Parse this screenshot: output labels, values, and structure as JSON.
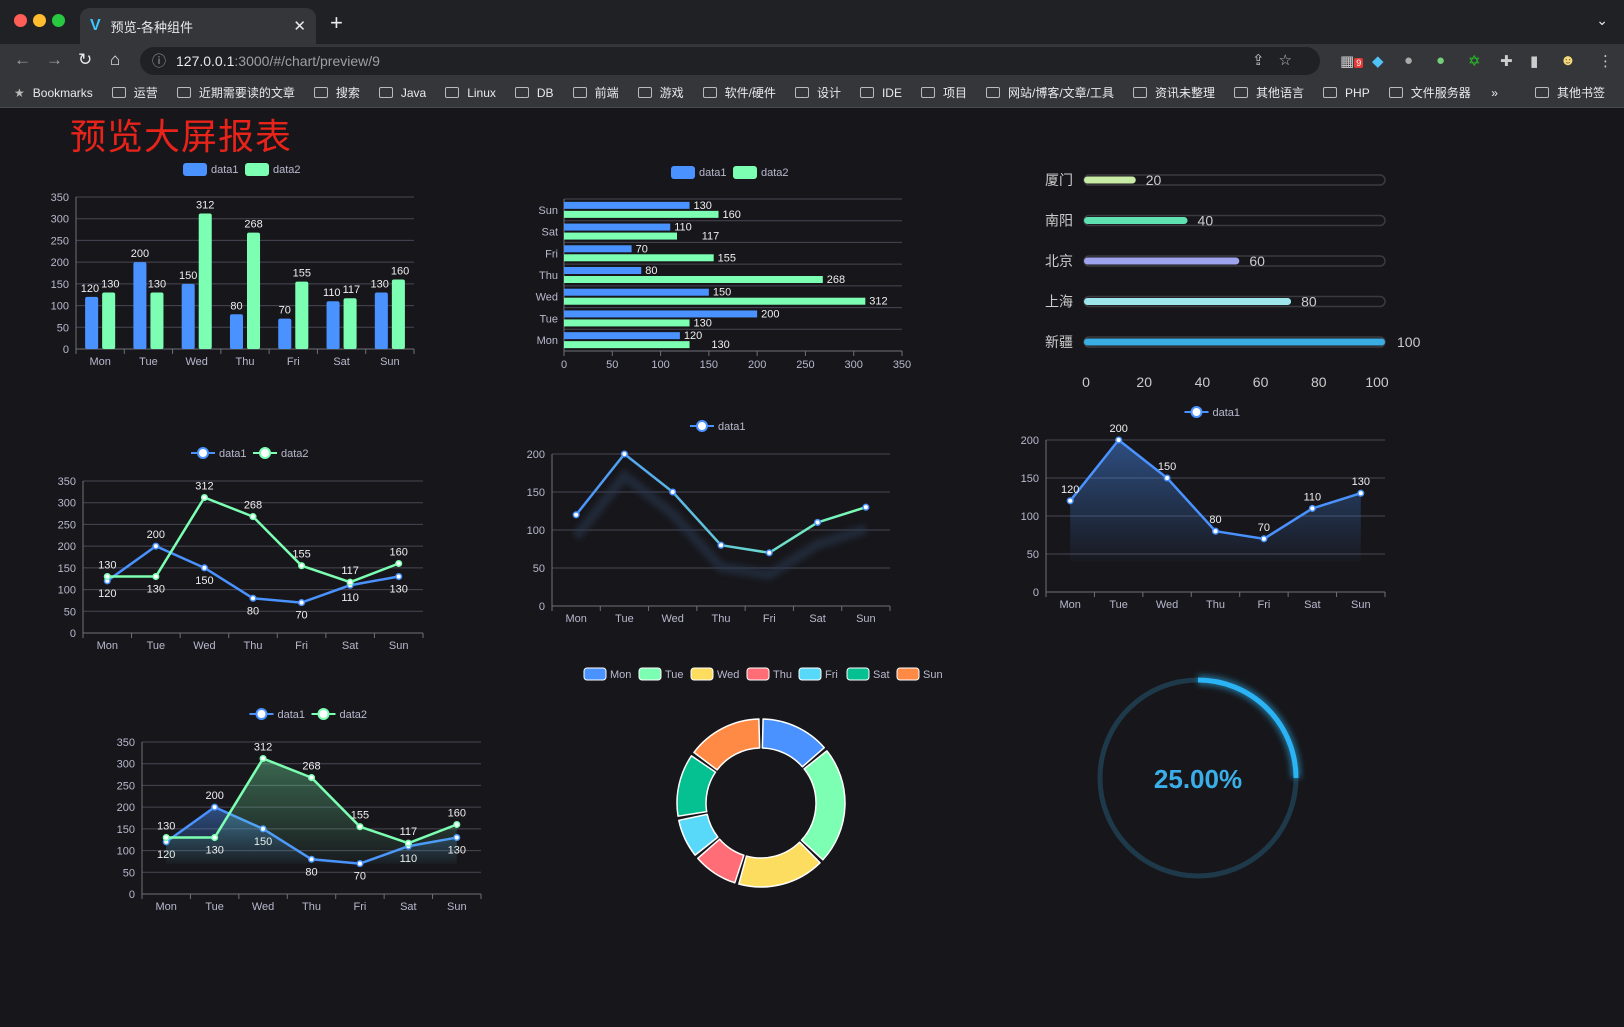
{
  "browser": {
    "tab_title": "预览-各种组件",
    "url_host": "127.0.0.1",
    "url_path": ":3000/#/chart/preview/9",
    "extension_badge": "9",
    "bookmarks": [
      "Bookmarks",
      "运营",
      "近期需要读的文章",
      "搜索",
      "Java",
      "Linux",
      "DB",
      "前端",
      "游戏",
      "软件/硬件",
      "设计",
      "IDE",
      "项目",
      "网站/博客/文章/工具",
      "资讯未整理",
      "其他语言",
      "PHP",
      "文件服务器"
    ],
    "bookmarks_more": "»",
    "other_bookmarks": "其他书签"
  },
  "page": {
    "title": "预览大屏报表",
    "title_color": "#e8231a",
    "background": "#17171b"
  },
  "colors": {
    "blue": "#4992ff",
    "green": "#7cffb2",
    "yellow": "#fddd60",
    "red": "#ff6e76",
    "cyan": "#58d9f9",
    "teal": "#05c091",
    "orange": "#ff8a45",
    "axis": "#6e7079",
    "text": "#b9b8ce",
    "grid": "#484753"
  },
  "chart_data": [
    {
      "id": "bar",
      "type": "bar",
      "categories": [
        "Mon",
        "Tue",
        "Wed",
        "Thu",
        "Fri",
        "Sat",
        "Sun"
      ],
      "ylim": [
        0,
        350
      ],
      "yticks": [
        0,
        50,
        100,
        150,
        200,
        250,
        300,
        350
      ],
      "series": [
        {
          "name": "data1",
          "values": [
            120,
            200,
            150,
            80,
            70,
            110,
            130
          ]
        },
        {
          "name": "data2",
          "values": [
            130,
            130,
            312,
            268,
            155,
            117,
            160
          ]
        }
      ],
      "legend": "top",
      "data_labels": true
    },
    {
      "id": "hbar",
      "type": "bar",
      "orientation": "horizontal",
      "categories": [
        "Mon",
        "Tue",
        "Wed",
        "Thu",
        "Fri",
        "Sat",
        "Sun"
      ],
      "xlim": [
        0,
        350
      ],
      "xticks": [
        0,
        50,
        100,
        150,
        200,
        250,
        300,
        350
      ],
      "series": [
        {
          "name": "data1",
          "values": [
            120,
            200,
            150,
            80,
            70,
            110,
            130
          ]
        },
        {
          "name": "data2",
          "values": [
            130,
            130,
            312,
            268,
            155,
            117,
            160
          ]
        }
      ],
      "legend": "top",
      "data_labels": true
    },
    {
      "id": "progress",
      "type": "bar",
      "orientation": "horizontal",
      "categories": [
        "厦门",
        "南阳",
        "北京",
        "上海",
        "新疆"
      ],
      "values": [
        20,
        40,
        60,
        80,
        100
      ],
      "xticks": [
        0,
        20,
        40,
        60,
        80,
        100
      ],
      "xlim": [
        0,
        100
      ],
      "colors": [
        "#c8eca6",
        "#5ee0b0",
        "#9fa2ec",
        "#9de6ec",
        "#3aaee2"
      ]
    },
    {
      "id": "line2",
      "type": "line",
      "categories": [
        "Mon",
        "Tue",
        "Wed",
        "Thu",
        "Fri",
        "Sat",
        "Sun"
      ],
      "ylim": [
        0,
        350
      ],
      "yticks": [
        0,
        50,
        100,
        150,
        200,
        250,
        300,
        350
      ],
      "series": [
        {
          "name": "data1",
          "values": [
            120,
            200,
            150,
            80,
            70,
            110,
            130
          ]
        },
        {
          "name": "data2",
          "values": [
            130,
            130,
            312,
            268,
            155,
            117,
            160
          ]
        }
      ],
      "legend": "top",
      "data_labels": true
    },
    {
      "id": "gradline",
      "type": "line",
      "categories": [
        "Mon",
        "Tue",
        "Wed",
        "Thu",
        "Fri",
        "Sat",
        "Sun"
      ],
      "ylim": [
        0,
        200
      ],
      "yticks": [
        0,
        50,
        100,
        150,
        200
      ],
      "series": [
        {
          "name": "data1",
          "values": [
            120,
            200,
            150,
            80,
            70,
            110,
            130
          ]
        }
      ],
      "legend": "top",
      "data_labels": false,
      "line_gradient": [
        "#4992ff",
        "#7cffb2"
      ]
    },
    {
      "id": "area1",
      "type": "area",
      "categories": [
        "Mon",
        "Tue",
        "Wed",
        "Thu",
        "Fri",
        "Sat",
        "Sun"
      ],
      "ylim": [
        0,
        200
      ],
      "yticks": [
        0,
        50,
        100,
        150,
        200
      ],
      "series": [
        {
          "name": "data1",
          "values": [
            120,
            200,
            150,
            80,
            70,
            110,
            130
          ]
        }
      ],
      "legend": "top",
      "data_labels": true
    },
    {
      "id": "area2",
      "type": "area",
      "categories": [
        "Mon",
        "Tue",
        "Wed",
        "Thu",
        "Fri",
        "Sat",
        "Sun"
      ],
      "ylim": [
        0,
        350
      ],
      "yticks": [
        0,
        50,
        100,
        150,
        200,
        250,
        300,
        350
      ],
      "series": [
        {
          "name": "data1",
          "values": [
            120,
            200,
            150,
            80,
            70,
            110,
            130
          ]
        },
        {
          "name": "data2",
          "values": [
            130,
            130,
            312,
            268,
            155,
            117,
            160
          ]
        }
      ],
      "legend": "top",
      "data_labels": true
    },
    {
      "id": "donut",
      "type": "pie",
      "categories": [
        "Mon",
        "Tue",
        "Wed",
        "Thu",
        "Fri",
        "Sat",
        "Sun"
      ],
      "values": [
        120,
        200,
        150,
        80,
        70,
        110,
        130
      ],
      "legend": "top"
    },
    {
      "id": "gauge",
      "type": "gauge",
      "value": 25,
      "label": "25.00%",
      "color": "#2ab4f5",
      "track_color": "#1e3a4a"
    }
  ]
}
